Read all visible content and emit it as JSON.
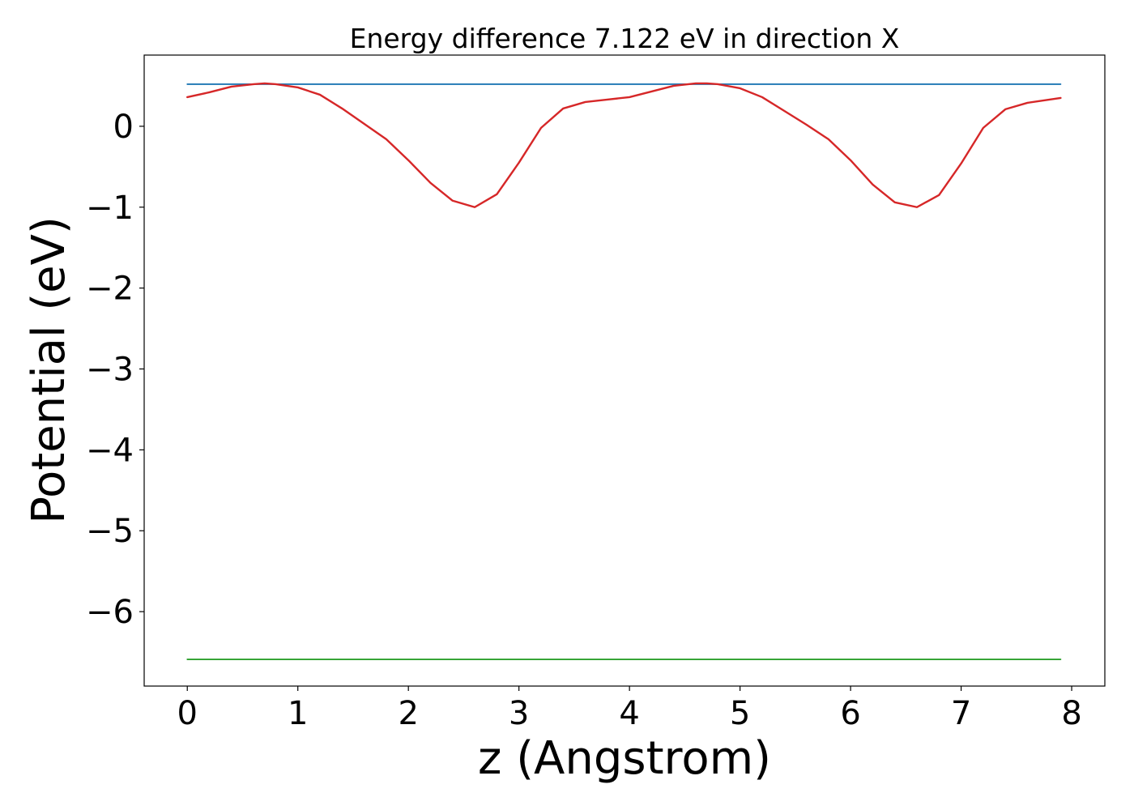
{
  "chart_data": {
    "type": "line",
    "title": "Energy difference 7.122 eV in direction X",
    "xlabel": "z (Angstrom)",
    "ylabel": "Potential (eV)",
    "xlim": [
      -0.39,
      8.3
    ],
    "ylim": [
      -6.92,
      0.88
    ],
    "xticks": [
      0,
      1,
      2,
      3,
      4,
      5,
      6,
      7,
      8
    ],
    "xtick_labels": [
      "0",
      "1",
      "2",
      "3",
      "4",
      "5",
      "6",
      "7",
      "8"
    ],
    "yticks": [
      0,
      -1,
      -2,
      -3,
      -4,
      -5,
      -6
    ],
    "ytick_labels": [
      "0",
      "−1",
      "−2",
      "−3",
      "−4",
      "−5",
      "−6"
    ],
    "grid": false,
    "legend": "none",
    "series": [
      {
        "color": "#1f77b4",
        "x": [
          0,
          7.9
        ],
        "y": [
          0.52,
          0.52
        ]
      },
      {
        "color": "#2ca02c",
        "x": [
          0,
          7.9
        ],
        "y": [
          -6.59,
          -6.59
        ]
      },
      {
        "color": "#d62728",
        "x": [
          0,
          0.2,
          0.4,
          0.6,
          0.7,
          0.8,
          1.0,
          1.2,
          1.4,
          1.6,
          1.8,
          2.0,
          2.2,
          2.4,
          2.6,
          2.8,
          3.0,
          3.2,
          3.4,
          3.6,
          3.8,
          4.0,
          4.2,
          4.4,
          4.6,
          4.7,
          4.8,
          5.0,
          5.2,
          5.4,
          5.6,
          5.8,
          6.0,
          6.2,
          6.4,
          6.6,
          6.8,
          7.0,
          7.2,
          7.4,
          7.6,
          7.8,
          7.9
        ],
        "y": [
          0.36,
          0.42,
          0.49,
          0.52,
          0.53,
          0.52,
          0.48,
          0.39,
          0.22,
          0.03,
          -0.16,
          -0.42,
          -0.7,
          -0.92,
          -1.0,
          -0.84,
          -0.45,
          -0.02,
          0.22,
          0.3,
          0.33,
          0.36,
          0.43,
          0.5,
          0.53,
          0.53,
          0.52,
          0.47,
          0.36,
          0.19,
          0.02,
          -0.16,
          -0.42,
          -0.72,
          -0.94,
          -1.0,
          -0.85,
          -0.46,
          -0.02,
          0.21,
          0.29,
          0.33,
          0.35
        ]
      }
    ]
  }
}
